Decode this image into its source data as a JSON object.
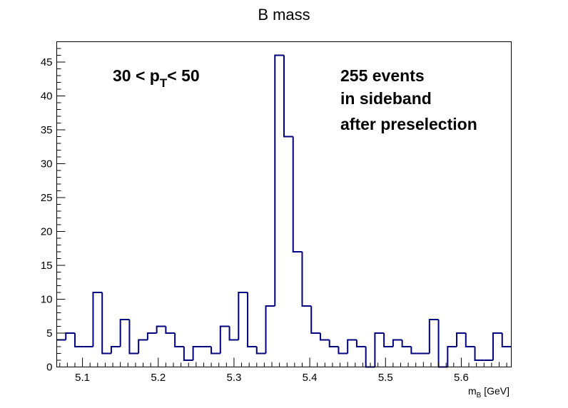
{
  "chart_data": {
    "type": "bar",
    "title": "B mass",
    "xlabel_main": "m",
    "xlabel_sub": "B",
    "xlabel_unit": " [GeV]",
    "ylabel": "",
    "xlim": [
      5.066,
      5.666
    ],
    "ylim": [
      0,
      48
    ],
    "bin_width": 0.012,
    "x_ticks": [
      5.1,
      5.2,
      5.3,
      5.4,
      5.5,
      5.6
    ],
    "x_tick_labels": [
      "5.1",
      "5.2",
      "5.3",
      "5.4",
      "5.5",
      "5.6"
    ],
    "y_ticks": [
      0,
      5,
      10,
      15,
      20,
      25,
      30,
      35,
      40,
      45
    ],
    "y_tick_labels": [
      "0",
      "5",
      "10",
      "15",
      "20",
      "25",
      "30",
      "35",
      "40",
      "45"
    ],
    "values": [
      4,
      5,
      3,
      3,
      11,
      2,
      3,
      7,
      2,
      4,
      5,
      6,
      5,
      3,
      1,
      3,
      3,
      2,
      6,
      4,
      11,
      3,
      2,
      9,
      46,
      34,
      17,
      9,
      5,
      4,
      3,
      2,
      4,
      3,
      0,
      5,
      3,
      4,
      3,
      2,
      2,
      7,
      0,
      3,
      5,
      3,
      1,
      1,
      5,
      3
    ],
    "line_color": "#000080",
    "grid": false,
    "annotations": {
      "pt_left": "30 < p",
      "pt_sub": "T",
      "pt_right": "< 50",
      "line1": "255 events",
      "line2": "in sideband",
      "line3": "after preselection"
    }
  }
}
